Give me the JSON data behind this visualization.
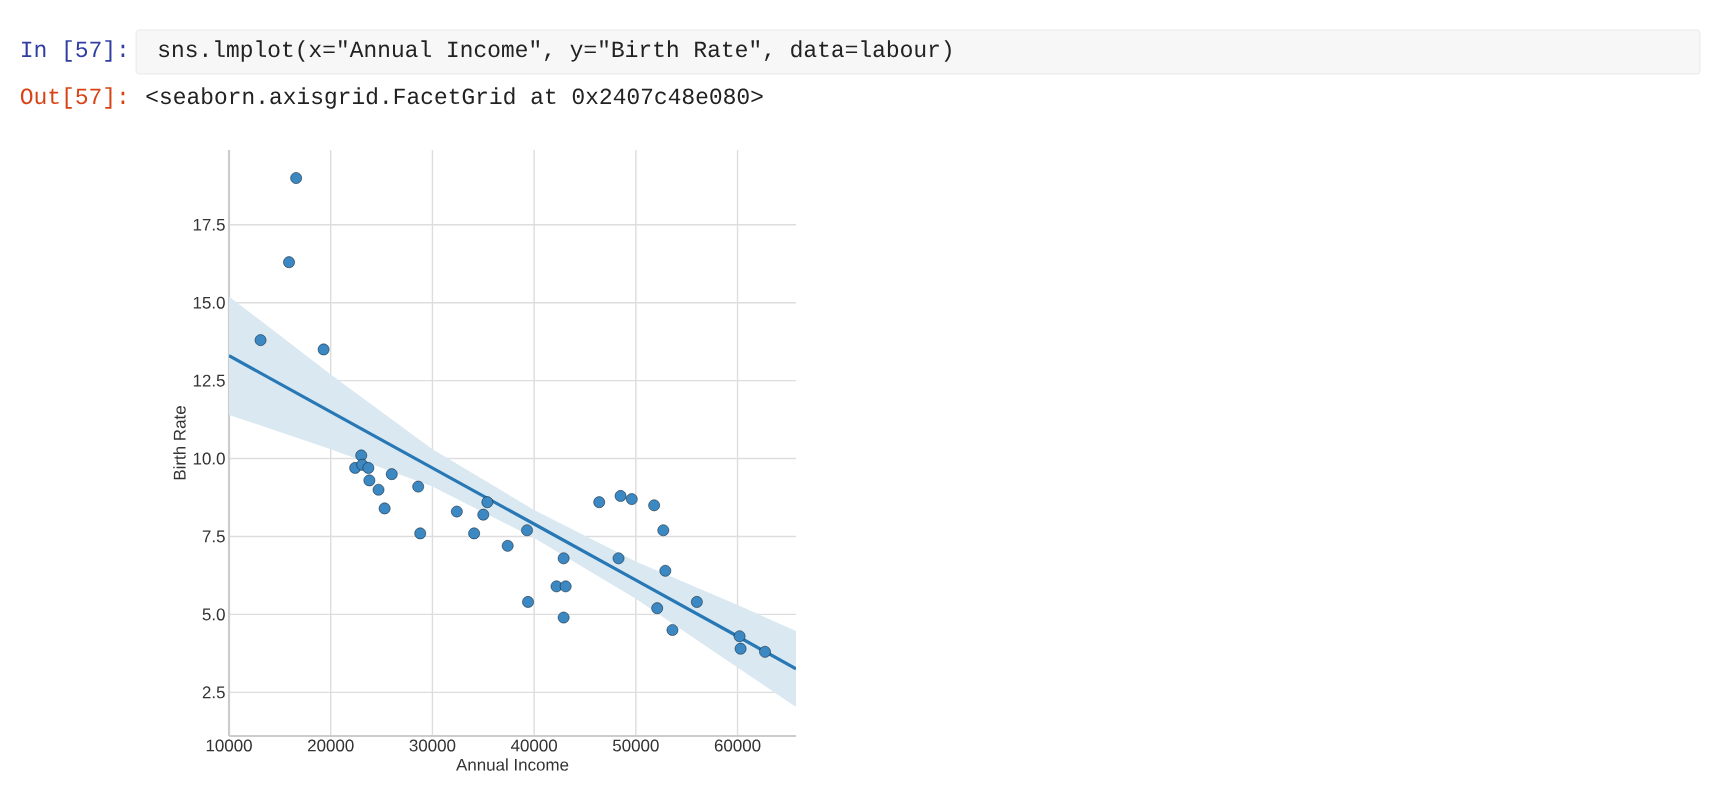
{
  "chart_data": {
    "type": "scatter",
    "xlabel": "Annual Income",
    "ylabel": "Birth Rate",
    "annotations": [
      "In [57]:",
      "sns.lmplot(x=\"Annual Income\", y=\"Birth Rate\", data=labour)",
      "Out[57]:",
      "<seaborn.axisgrid.FacetGrid at 0x2407c48e080>"
    ],
    "xlim": [
      10000,
      65750
    ],
    "ylim": [
      1.1,
      19.9
    ],
    "xticks": [
      10000,
      20000,
      30000,
      40000,
      50000,
      60000
    ],
    "yticks": [
      {
        "value": 2.5,
        "label": "2.5"
      },
      {
        "value": 5,
        "label": "5.0"
      },
      {
        "value": 7.5,
        "label": "7.5"
      },
      {
        "value": 10,
        "label": "10.0"
      },
      {
        "value": 12.5,
        "label": "12.5"
      },
      {
        "value": 15,
        "label": "15.0"
      },
      {
        "value": 17.5,
        "label": "17.5"
      }
    ],
    "grid": true,
    "series": [
      {
        "marker": "circle",
        "color": "#3c88c2",
        "x": [
          16600,
          15900,
          13100,
          19300,
          23000,
          22400,
          23100,
          23700,
          23800,
          24700,
          25300,
          26000,
          28600,
          28800,
          32400,
          34100,
          35000,
          35400,
          37400,
          39300,
          39400,
          42200,
          43100,
          42900,
          42900,
          46400,
          48500,
          49600,
          48300,
          51800,
          52700,
          52900,
          52100,
          53600,
          56000,
          60200,
          60300,
          62700
        ],
        "values": [
          19.0,
          16.3,
          13.8,
          13.5,
          10.1,
          9.7,
          9.8,
          9.7,
          9.3,
          9.0,
          8.4,
          9.5,
          9.1,
          7.6,
          8.3,
          7.6,
          8.2,
          8.6,
          7.2,
          7.7,
          5.4,
          5.9,
          5.9,
          6.8,
          4.9,
          8.6,
          8.8,
          8.7,
          6.8,
          8.5,
          7.7,
          6.4,
          5.2,
          4.5,
          5.4,
          4.3,
          3.9,
          3.8
        ]
      },
      {
        "type": "line",
        "marker": "none",
        "color": "#2878b5",
        "x": [
          10000,
          20000,
          30000,
          40000,
          50000,
          60000,
          65750
        ],
        "values": [
          13.3,
          11.5,
          9.7,
          7.9,
          6.1,
          4.3,
          3.25
        ],
        "upper": [
          15.2,
          12.7,
          10.3,
          8.35,
          6.7,
          5.3,
          4.47
        ],
        "lower": [
          11.4,
          10.3,
          9.1,
          7.45,
          5.5,
          3.3,
          2.03
        ]
      }
    ]
  }
}
